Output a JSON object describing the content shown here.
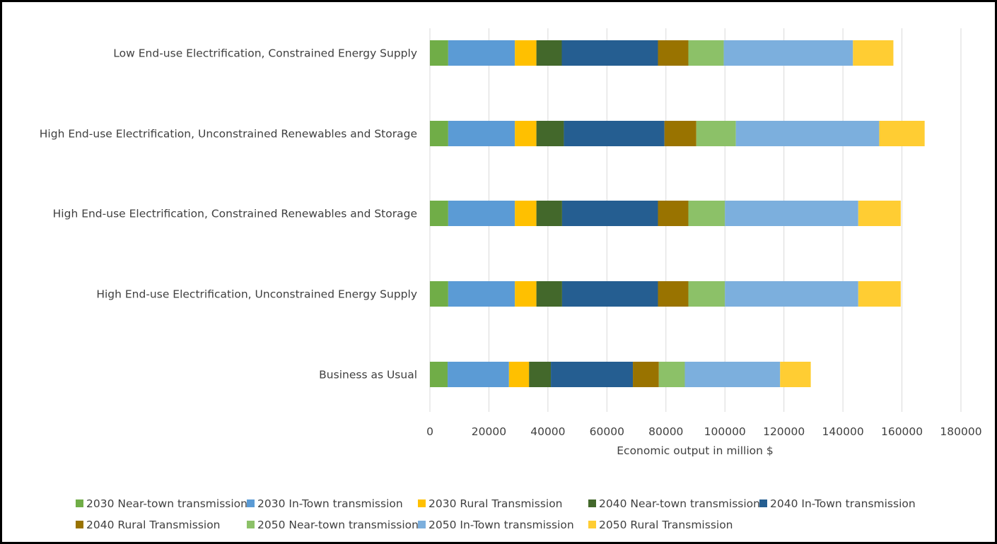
{
  "chart_data": {
    "type": "bar",
    "orientation": "horizontal",
    "stacked": true,
    "title": "",
    "xlabel": "Economic output  in million $",
    "ylabel": "",
    "xlim": [
      0,
      180000
    ],
    "xticks": [
      0,
      20000,
      40000,
      60000,
      80000,
      100000,
      120000,
      140000,
      160000,
      180000
    ],
    "xtick_labels": [
      "0",
      "20000",
      "40000",
      "60000",
      "80000",
      "100000",
      "120000",
      "140000",
      "160000",
      "180000"
    ],
    "grid": true,
    "legend_position": "bottom",
    "categories": [
      "Low End-use Electrification, Constrained Energy Supply",
      "High End-use Electrification, Unconstrained Renewables and Storage",
      "High End-use Electrification, Constrained Renewables and Storage",
      "High End-use Electrification, Unconstrained Energy Supply",
      "Business as Usual"
    ],
    "series": [
      {
        "name": "2030 Near-town transmission",
        "color": "#70ad47",
        "values": [
          6200,
          6200,
          6200,
          6200,
          6000
        ]
      },
      {
        "name": "2030 In-Town transmission",
        "color": "#5b9bd5",
        "values": [
          22600,
          22600,
          22600,
          22600,
          20800
        ]
      },
      {
        "name": "2030 Rural Transmission",
        "color": "#ffc000",
        "values": [
          7300,
          7300,
          7300,
          7300,
          6800
        ]
      },
      {
        "name": "2040 Near-town transmission",
        "color": "#43682b",
        "values": [
          8600,
          9300,
          8700,
          8700,
          7400
        ]
      },
      {
        "name": "2040 In-Town transmission",
        "color": "#255e91",
        "values": [
          32600,
          34100,
          32500,
          32500,
          27800
        ]
      },
      {
        "name": "2040 Rural Transmission",
        "color": "#997300",
        "values": [
          10300,
          10800,
          10300,
          10300,
          8800
        ]
      },
      {
        "name": "2050 Near-town transmission",
        "color": "#8cc168",
        "values": [
          12000,
          13400,
          12400,
          12400,
          8800
        ]
      },
      {
        "name": "2050 In-Town transmission",
        "color": "#7cafdd",
        "values": [
          43800,
          48600,
          45200,
          45200,
          32300
        ]
      },
      {
        "name": "2050 Rural Transmission",
        "color": "#ffcd33",
        "values": [
          13700,
          15400,
          14400,
          14400,
          10400
        ]
      }
    ]
  }
}
